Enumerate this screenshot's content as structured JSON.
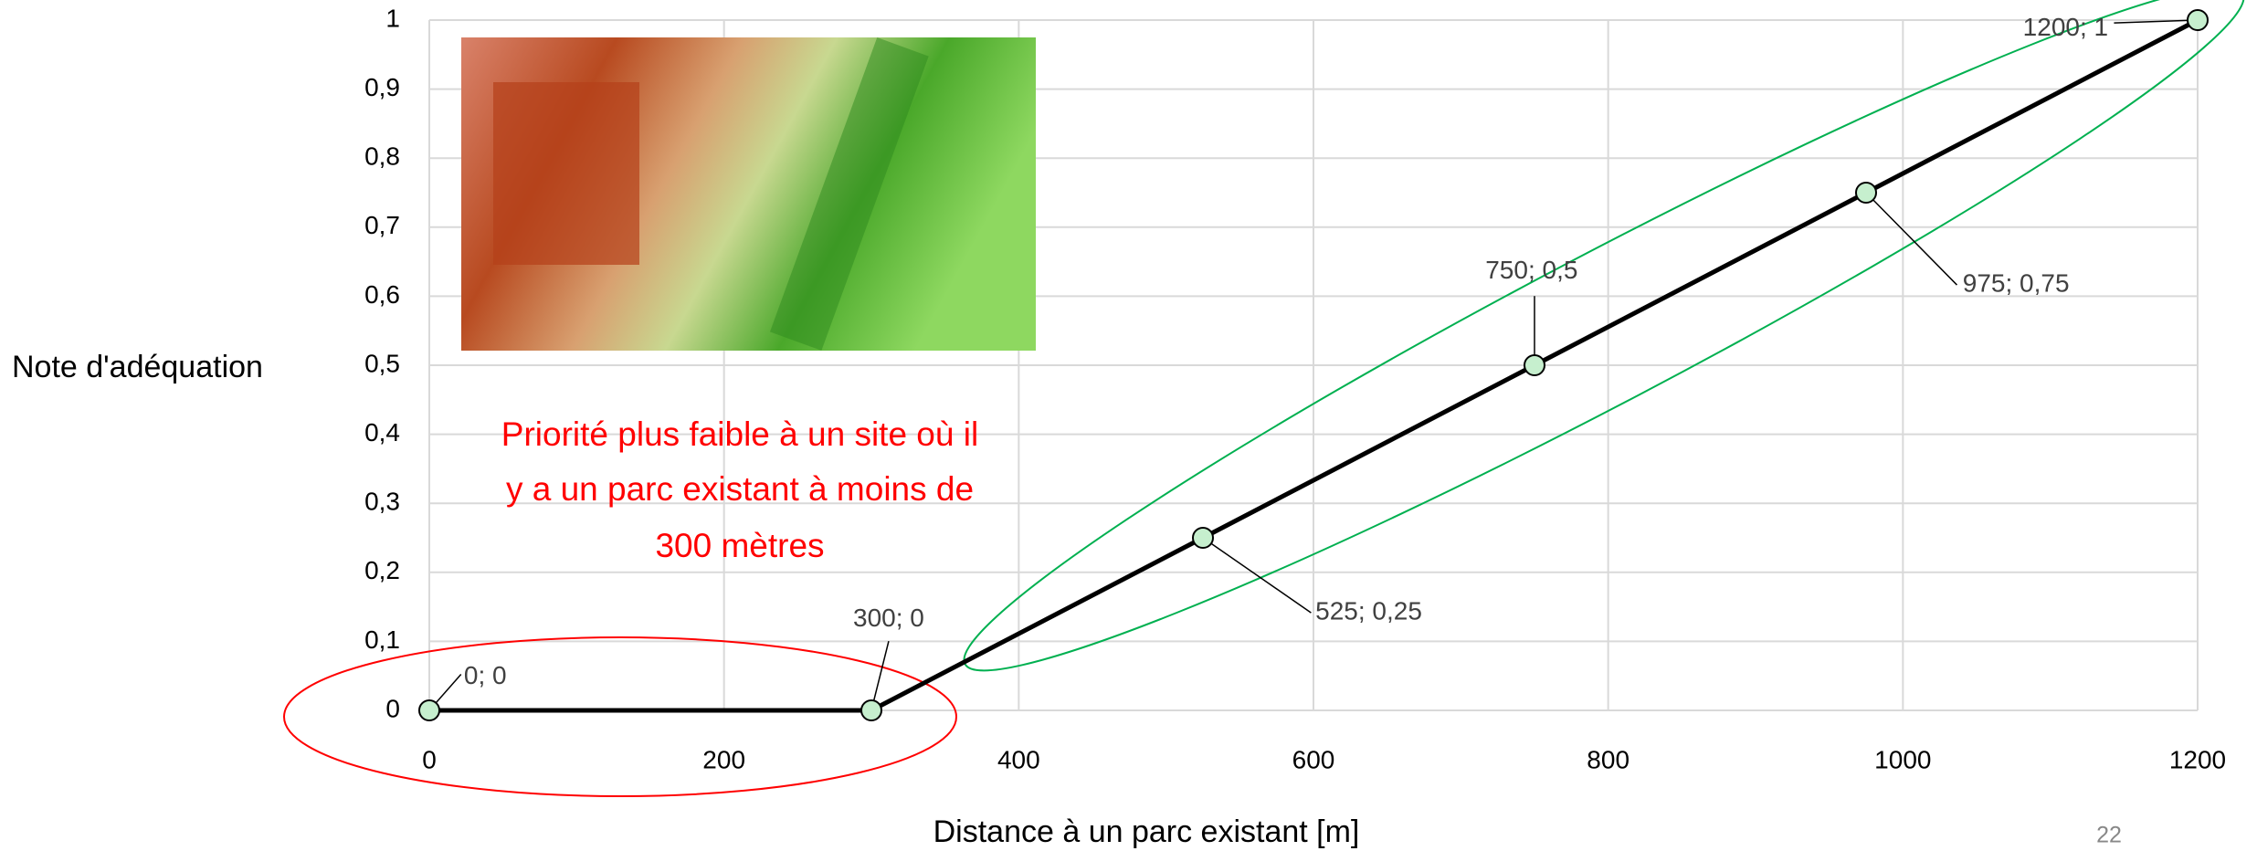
{
  "chart_data": {
    "type": "line",
    "x": [
      0,
      300,
      525,
      750,
      975,
      1200
    ],
    "values": [
      0,
      0,
      0.25,
      0.5,
      0.75,
      1
    ],
    "value_labels": [
      "0; 0",
      "300; 0",
      "525; 0,25",
      "750; 0,5",
      "975; 0,75",
      "1200; 1"
    ],
    "color": "#000000",
    "marker_color": "#c6efce",
    "xlim": [
      0,
      1200
    ],
    "xticks": [
      0,
      200,
      400,
      600,
      800,
      1000,
      1200
    ],
    "ylim": [
      0,
      1
    ],
    "yticks": [
      0,
      {
        "value": 0.1,
        "label": "0,1"
      },
      {
        "value": 0.2,
        "label": "0,2"
      },
      {
        "value": 0.3,
        "label": "0,3"
      },
      {
        "value": 0.4,
        "label": "0,4"
      },
      {
        "value": 0.5,
        "label": "0,5"
      },
      {
        "value": 0.6,
        "label": "0,6"
      },
      {
        "value": 0.7,
        "label": "0,7"
      },
      {
        "value": 0.8,
        "label": "0,8"
      },
      {
        "value": 0.9,
        "label": "0,9"
      },
      1
    ],
    "grid": true,
    "xlabel": "Distance à un parc existant [m]",
    "ylabel": "Note d'adéquation",
    "annotation": [
      "Priorité plus faible à un site où il",
      "y a un parc existant à moins de",
      "300 mètres"
    ]
  },
  "page_number": "22"
}
